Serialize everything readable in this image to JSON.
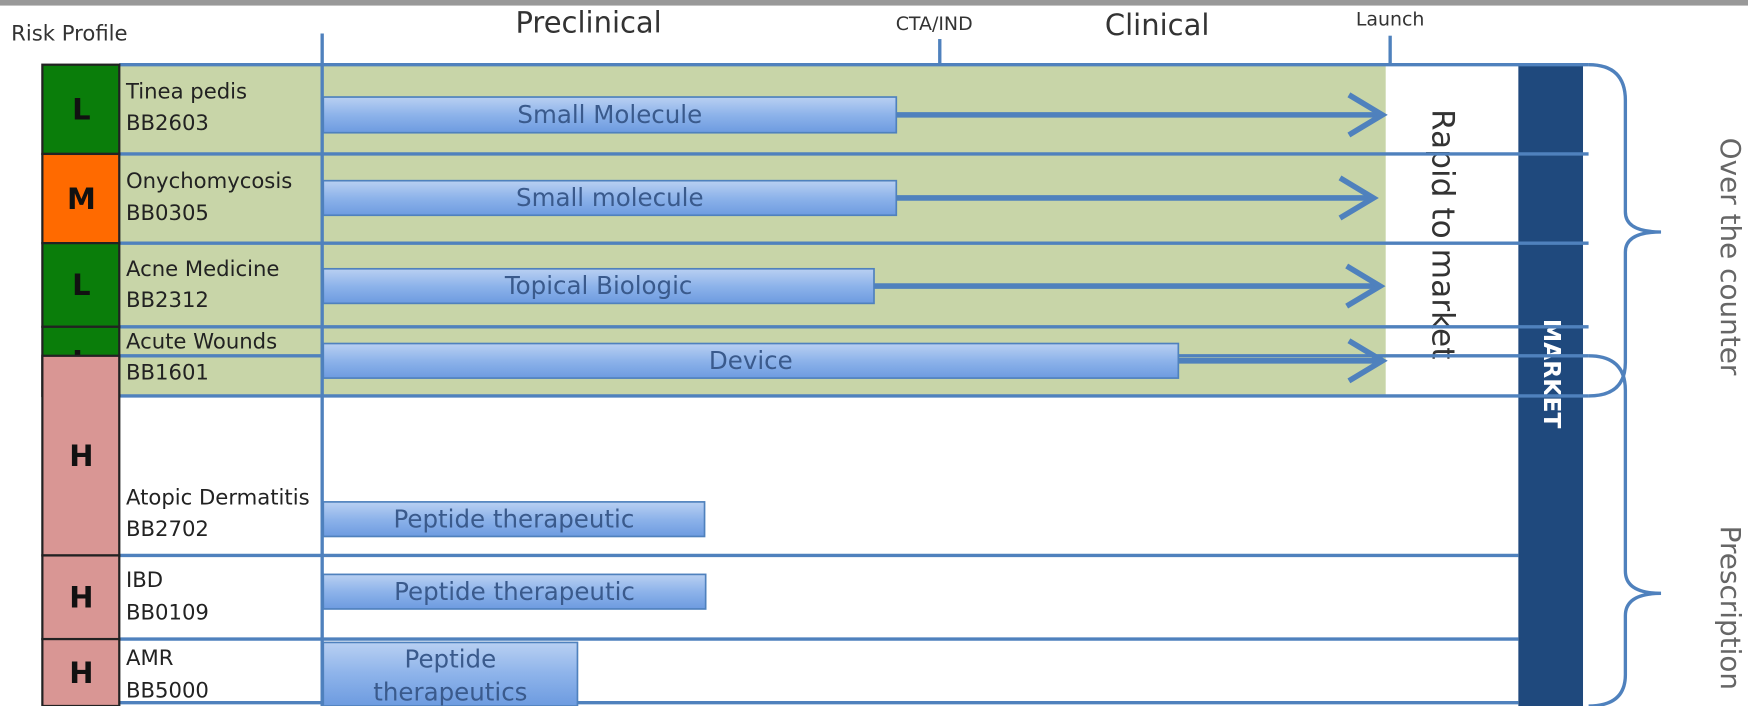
{
  "header": {
    "risk_profile": "Risk Profile",
    "preclinical": "Preclinical",
    "cta_ind": "CTA/IND",
    "clinical": "Clinical",
    "launch": "Launch"
  },
  "rows": [
    {
      "risk": "L",
      "name": "Tinea pedis",
      "code": "BB2603",
      "modality": "Small Molecule"
    },
    {
      "risk": "M",
      "name": "Onychomycosis",
      "code": "BB0305",
      "modality": "Small molecule"
    },
    {
      "risk": "L",
      "name": "Acne Medicine",
      "code": "BB2312",
      "modality": "Topical Biologic"
    },
    {
      "risk": "L",
      "name": "Acute Wounds",
      "code": "BB1601",
      "modality": "Device"
    },
    {
      "risk": "H",
      "name": "Atopic Dermatitis",
      "code": "BB2702",
      "modality": "Peptide therapeutic"
    },
    {
      "risk": "H",
      "name": "IBD",
      "code": "BB0109",
      "modality": "Peptide therapeutic"
    },
    {
      "risk": "H",
      "name": "AMR",
      "code": "BB5000",
      "modality": [
        "Peptide",
        "therapeutics"
      ]
    }
  ],
  "rapid": "Rapid to market",
  "market": "MARKET",
  "groups": {
    "otc": "Over the counter",
    "prescription": "Prescription"
  }
}
